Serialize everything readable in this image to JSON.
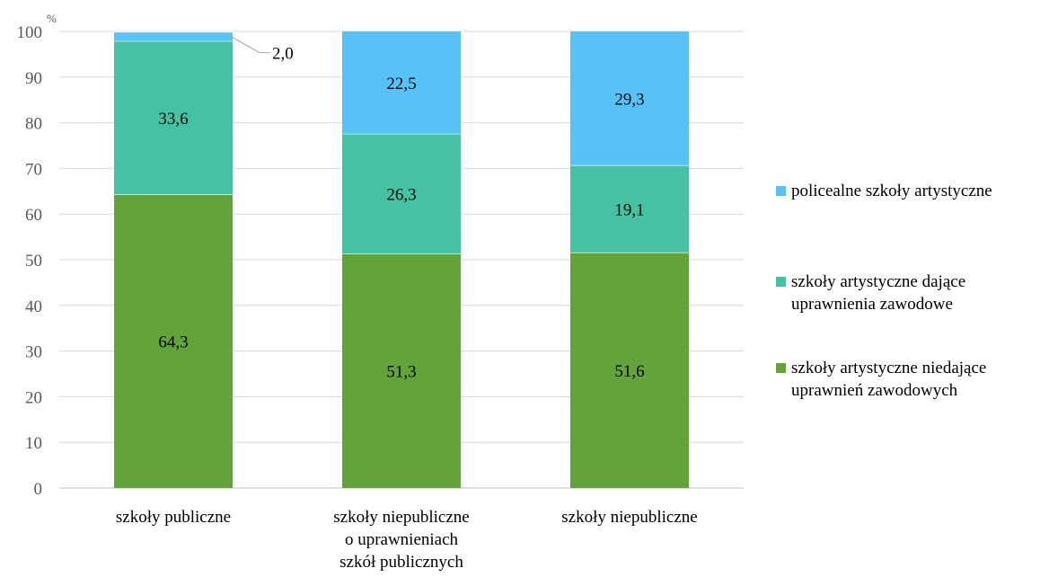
{
  "chart_data": {
    "type": "bar",
    "stacked": true,
    "unit_label": "%",
    "categories": [
      [
        "szkoły publiczne"
      ],
      [
        "szkoły niepubliczne",
        "o uprawnieniach",
        "szkół publicznych"
      ],
      [
        "szkoły niepubliczne"
      ]
    ],
    "series": [
      {
        "name": "szkoły artystyczne niedające uprawnień zawodowych",
        "legend_lines": [
          "szkoły artystyczne niedające",
          "uprawnień zawodowych"
        ],
        "color": "#62a43a",
        "values": [
          64.3,
          51.3,
          51.6
        ],
        "labels": [
          "64,3",
          "51,3",
          "51,6"
        ]
      },
      {
        "name": "szkoły artystyczne dające uprawnienia zawodowe",
        "legend_lines": [
          "szkoły artystyczne dające",
          "uprawnienia zawodowe"
        ],
        "color": "#45c2a4",
        "values": [
          33.6,
          26.3,
          19.1
        ],
        "labels": [
          "33,6",
          "26,3",
          "19,1"
        ]
      },
      {
        "name": "policealne szkoły artystyczne",
        "legend_lines": [
          "policealne szkoły artystyczne"
        ],
        "color": "#56c2f6",
        "values": [
          2.0,
          22.5,
          29.3
        ],
        "labels": [
          "2,0",
          "22,5",
          "29,3"
        ]
      }
    ],
    "ylim": [
      0,
      100
    ],
    "yticks": [
      0,
      10,
      20,
      30,
      40,
      50,
      60,
      70,
      80,
      90,
      100
    ],
    "grid": true,
    "legend_position": "right"
  }
}
